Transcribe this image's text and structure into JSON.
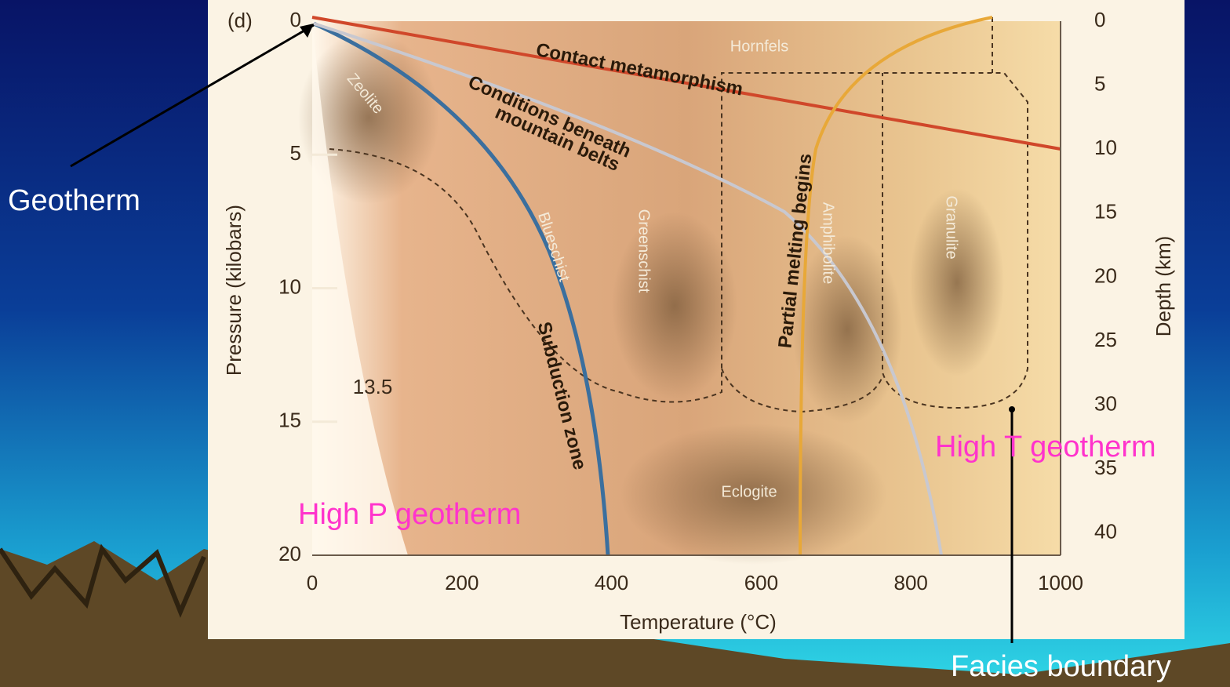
{
  "slide": {
    "annotations": {
      "geotherm": "Geotherm",
      "high_p": "High P geotherm",
      "high_t": "High T geotherm",
      "facies_boundary": "Facies boundary"
    }
  },
  "figure": {
    "panel": "(d)",
    "x_axis": {
      "title": "Temperature (°C)",
      "ticks": [
        "0",
        "200",
        "400",
        "600",
        "800",
        "1000"
      ]
    },
    "y_axis": {
      "title": "Pressure (kilobars)",
      "ticks": [
        "0",
        "5",
        "10",
        "15",
        "20"
      ]
    },
    "y2_axis": {
      "title": "Depth (km)",
      "ticks": [
        "0",
        "5",
        "10",
        "15",
        "20",
        "25",
        "30",
        "35",
        "40"
      ]
    },
    "marker": "13.5",
    "facies": {
      "hornfels": "Hornfels",
      "zeolite": "Zeolite",
      "blueschist": "Blueschist",
      "greenschist": "Greenschist",
      "amphibolite": "Amphibolite",
      "granulite": "Granulite",
      "eclogite": "Eclogite"
    },
    "curves": {
      "contact": "Contact metamorphism",
      "mountain": [
        "Conditions beneath",
        "mountain belts"
      ],
      "subduction": "Subduction zone",
      "melting": "Partial melting begins"
    }
  }
}
